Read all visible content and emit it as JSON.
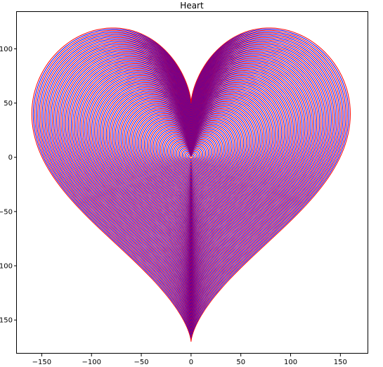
{
  "chart_data": {
    "type": "line",
    "title": "Heart",
    "xlabel": "",
    "ylabel": "",
    "xlim": [
      -175,
      178
    ],
    "ylim": [
      -181,
      134
    ],
    "xticks": [
      -150,
      -100,
      -50,
      0,
      50,
      100,
      150
    ],
    "xtick_labels": [
      "−150",
      "−100",
      "−50",
      "0",
      "50",
      "100",
      "150"
    ],
    "yticks": [
      100,
      50,
      0,
      -50,
      -100,
      -150
    ],
    "ytick_labels": [
      "100",
      "50",
      "0",
      "−50",
      "−100",
      "−150"
    ],
    "grid": false,
    "curve": {
      "description_equation": "x = 16*s*sin(t)^3; y = s*(13*cos(t) - 5*cos(2t) - 2*cos(3t) - cos(4t))",
      "scale_min": 0,
      "scale_max": 10,
      "count": 110,
      "colors": [
        "#0000ff",
        "#ff0000"
      ]
    }
  }
}
